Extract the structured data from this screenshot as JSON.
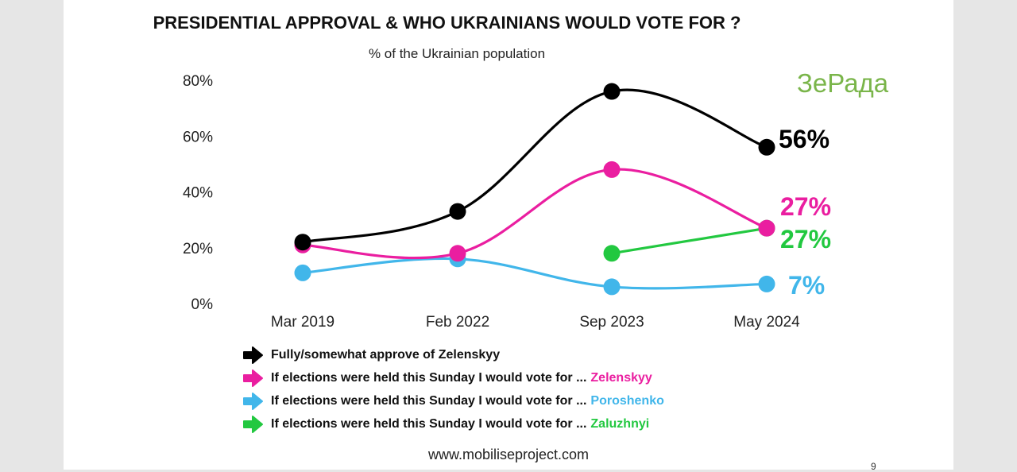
{
  "chart_data": {
    "type": "line",
    "title": "PRESIDENTIAL APPROVAL & WHO UKRAINIANS WOULD VOTE FOR ?",
    "subtitle": "% of the Ukrainian population",
    "categories": [
      "Mar 2019",
      "Feb 2022",
      "Sep 2023",
      "May 2024"
    ],
    "yticks": [
      "80%",
      "60%",
      "40%",
      "20%",
      "0%"
    ],
    "ylim": [
      0,
      80
    ],
    "grid": false,
    "legend_position": "bottom",
    "series": [
      {
        "name": "Fully/somewhat approve of Zelenskyy",
        "legend_prefix": "Fully/somewhat approve of Zelenskyy",
        "legend_name": "",
        "color": "#000000",
        "values": [
          22,
          33,
          76,
          56
        ],
        "end_label": "56%"
      },
      {
        "name": "Zelenskyy",
        "legend_prefix": "If elections were held this Sunday I would vote for ...",
        "legend_name": "Zelenskyy",
        "color": "#ea1ea0",
        "values": [
          21,
          18,
          48,
          27
        ],
        "end_label": "27%"
      },
      {
        "name": "Poroshenko",
        "legend_prefix": "If elections were held this Sunday I would vote for ...",
        "legend_name": "Poroshenko",
        "color": "#41b6ea",
        "values": [
          11,
          16,
          6,
          7
        ],
        "end_label": "7%"
      },
      {
        "name": "Zaluzhnyi",
        "legend_prefix": "If elections were held this Sunday I would vote for ...",
        "legend_name": "Zaluzhnyi",
        "color": "#22c840",
        "values": [
          null,
          null,
          18,
          27
        ],
        "end_label": "27%"
      }
    ]
  },
  "watermark": "ЗеРада",
  "source": "www.mobiliseproject.com",
  "page_number": "9",
  "colors": {
    "background": "#ffffff",
    "frame": "#e6e6e6"
  }
}
